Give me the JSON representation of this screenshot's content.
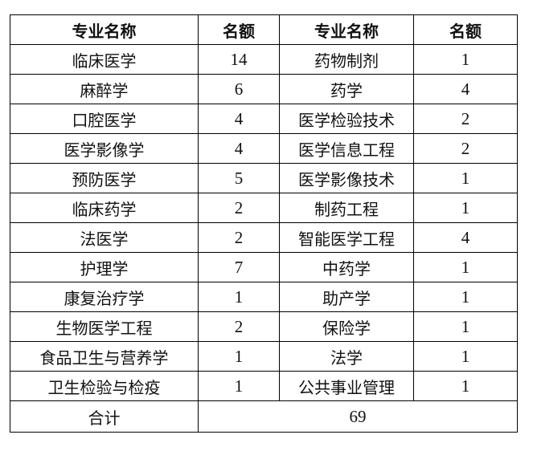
{
  "headers": [
    "专业名称",
    "名额",
    "专业名称",
    "名额"
  ],
  "rows": [
    [
      "临床医学",
      "14",
      "药物制剂",
      "1"
    ],
    [
      "麻醉学",
      "6",
      "药学",
      "4"
    ],
    [
      "口腔医学",
      "4",
      "医学检验技术",
      "2"
    ],
    [
      "医学影像学",
      "4",
      "医学信息工程",
      "2"
    ],
    [
      "预防医学",
      "5",
      "医学影像技术",
      "1"
    ],
    [
      "临床药学",
      "2",
      "制药工程",
      "1"
    ],
    [
      "法医学",
      "2",
      "智能医学工程",
      "4"
    ],
    [
      "护理学",
      "7",
      "中药学",
      "1"
    ],
    [
      "康复治疗学",
      "1",
      "助产学",
      "1"
    ],
    [
      "生物医学工程",
      "2",
      "保险学",
      "1"
    ],
    [
      "食品卫生与营养学",
      "1",
      "法学",
      "1"
    ],
    [
      "卫生检验与检疫",
      "1",
      "公共事业管理",
      "1"
    ]
  ],
  "total": {
    "label": "合计",
    "value": "69"
  }
}
